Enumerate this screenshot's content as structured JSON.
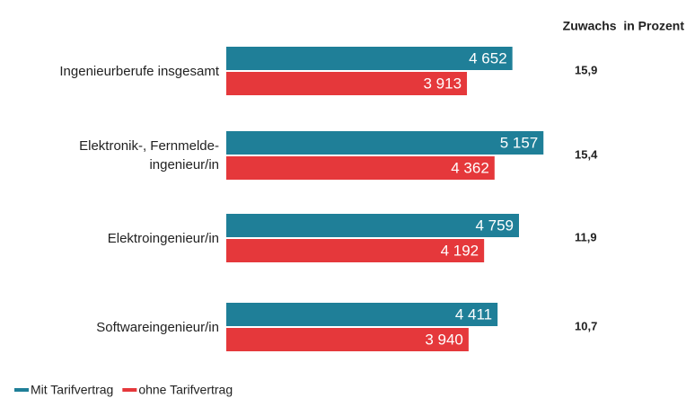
{
  "chart_data": {
    "type": "bar",
    "orientation": "horizontal",
    "categories": [
      "Ingenieurberufe insgesamt",
      "Elektronik-, Fernmelde-\ningenieur/in",
      "Elektroingenieur/in",
      "Softwareingenieur/in"
    ],
    "series": [
      {
        "name": "Mit Tarifvertrag",
        "color": "#1f7f98",
        "values": [
          4652,
          5157,
          4759,
          4411
        ],
        "value_labels": [
          "4 652",
          "5 157",
          "4 759",
          "4 411"
        ]
      },
      {
        "name": "ohne Tarifvertrag",
        "color": "#e5383b",
        "values": [
          3913,
          4362,
          4192,
          3940
        ],
        "value_labels": [
          "3 913",
          "4 362",
          "4 192",
          "3 940"
        ]
      }
    ],
    "growth": {
      "title": "Zuwachs  in Prozent",
      "values": [
        15.9,
        15.4,
        11.9,
        10.7
      ],
      "value_labels": [
        "15,9",
        "15,4",
        "11,9",
        "10,7"
      ]
    },
    "legend": "bottom-left"
  }
}
